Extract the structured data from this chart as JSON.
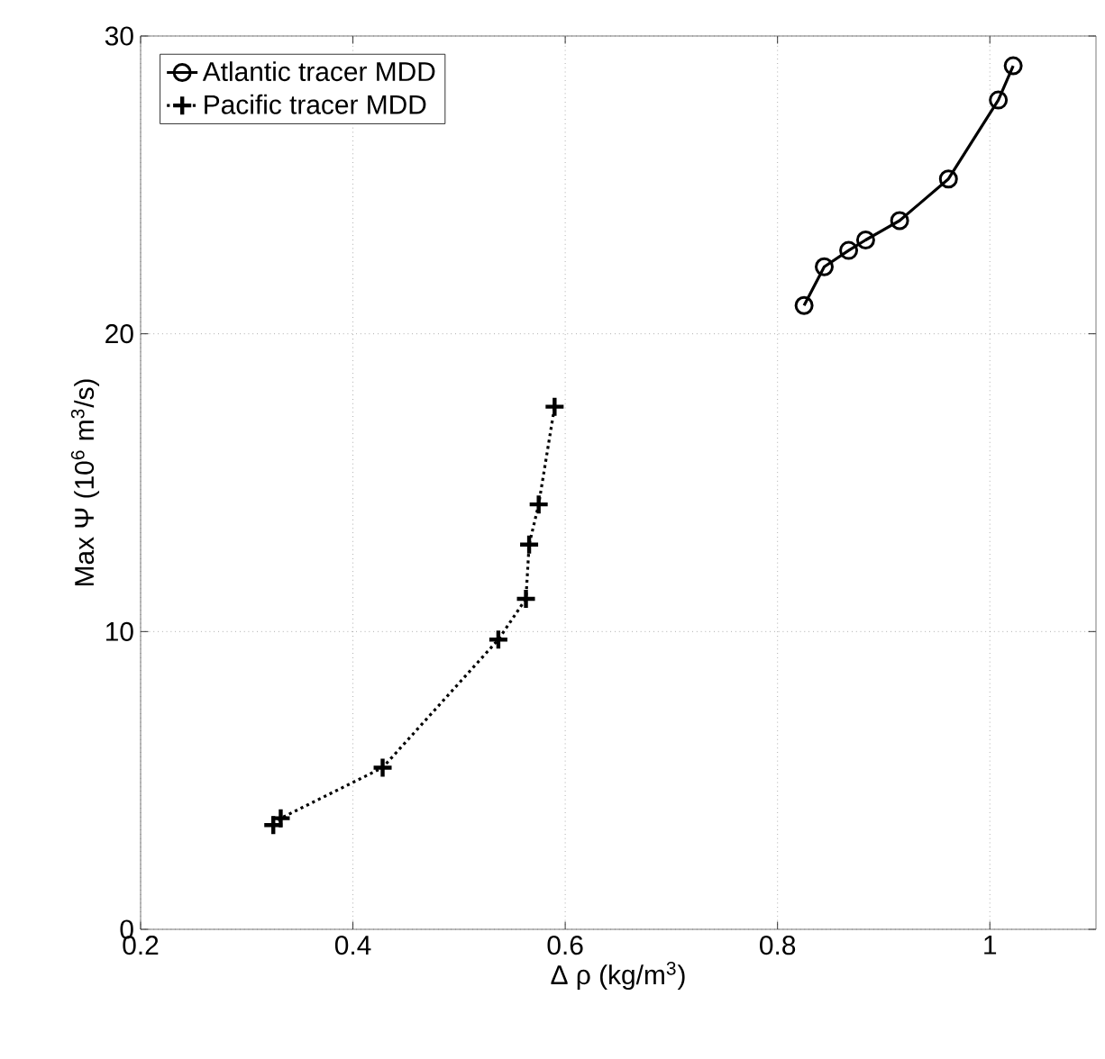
{
  "chart_data": {
    "type": "line",
    "xlabel": "Δ ρ  (kg/m$^{3}$)",
    "ylabel": "Max Ψ (10$^{6}$ m$^{3}$/s)",
    "xlim": [
      0.2,
      1.1
    ],
    "ylim": [
      0,
      30
    ],
    "xticks": [
      0.2,
      0.4,
      0.6,
      0.8,
      1
    ],
    "yticks": [
      0,
      10,
      20,
      30
    ],
    "grid": true,
    "legend": "top left",
    "series": [
      {
        "name": "Atlantic tracer MDD",
        "color": "#000000",
        "marker": "circle",
        "line_style": "solid",
        "x": [
          0.825,
          0.844,
          0.867,
          0.883,
          0.915,
          0.961,
          1.008,
          1.022
        ],
        "values": [
          20.95,
          22.25,
          22.8,
          23.15,
          23.8,
          25.2,
          27.85,
          29.0
        ]
      },
      {
        "name": "Pacific tracer MDD",
        "color": "#000000",
        "marker": "cross",
        "line_style": "dotted",
        "x": [
          0.325,
          0.332,
          0.428,
          0.537,
          0.563,
          0.566,
          0.575,
          0.59
        ],
        "values": [
          3.5,
          3.73,
          5.43,
          9.73,
          11.1,
          12.92,
          14.27,
          17.55
        ]
      }
    ]
  }
}
